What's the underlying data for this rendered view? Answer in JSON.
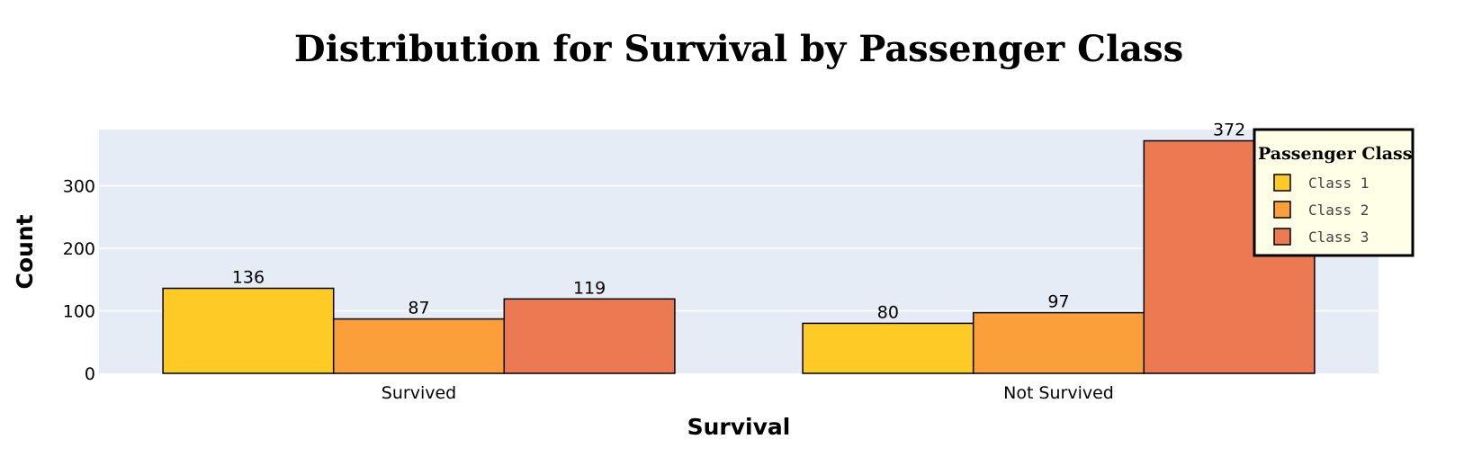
{
  "chart_data": {
    "type": "bar",
    "mode": "grouped",
    "title": "Distribution for Survival by Passenger Class",
    "xlabel": "Survival",
    "ylabel": "Count",
    "categories": [
      "Survived",
      "Not Survived"
    ],
    "series": [
      {
        "name": "Class 1",
        "values": [
          136,
          80
        ],
        "color": "#fdca26"
      },
      {
        "name": "Class 2",
        "values": [
          87,
          97
        ],
        "color": "#fb9f3a"
      },
      {
        "name": "Class 3",
        "values": [
          119,
          372
        ],
        "color": "#ed7953"
      }
    ],
    "ylim": [
      0,
      390
    ],
    "yticks": [
      0,
      100,
      200,
      300
    ],
    "grid": true,
    "legend": {
      "title": "Passenger Class",
      "placement": "top-right"
    },
    "colors": {
      "plot_background": "#e5ecf6",
      "gridline": "#ffffff",
      "bar_outline": "#000000",
      "legend_background": "#fffee6",
      "legend_border": "#000000"
    }
  }
}
